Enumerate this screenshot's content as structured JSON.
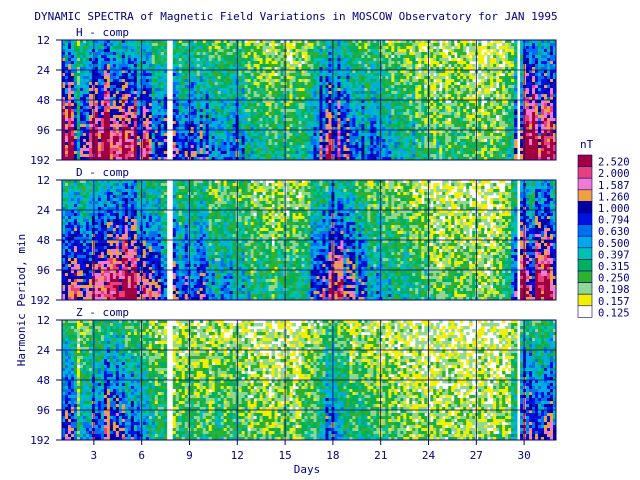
{
  "chart_data": {
    "type": "heatmap",
    "title": "DYNAMIC SPECTRA of Magnetic Field Variations in MOSCOW Observatory for JAN 1995",
    "xlabel": "Days",
    "ylabel": "Harmonic Period, min",
    "x_ticks": [
      "3",
      "6",
      "9",
      "12",
      "15",
      "18",
      "21",
      "24",
      "27",
      "30"
    ],
    "y_ticks": [
      "12",
      "24",
      "48",
      "96",
      "192"
    ],
    "y_scale": "log2",
    "x_range": [
      1,
      32
    ],
    "data_gaps_days": [
      [
        7.5,
        7.9
      ],
      [
        29.6,
        29.8
      ]
    ],
    "panels": [
      {
        "label": "H - comp",
        "activity": [
          {
            "day": 2,
            "level": 0.55
          },
          {
            "day": 3,
            "level": 1.0
          },
          {
            "day": 4,
            "level": 0.98
          },
          {
            "day": 5,
            "level": 0.9
          },
          {
            "day": 6,
            "level": 0.85
          },
          {
            "day": 7,
            "level": 0.55
          },
          {
            "day": 8,
            "level": 0.7
          },
          {
            "day": 9,
            "level": 0.6
          },
          {
            "day": 10,
            "level": 0.58
          },
          {
            "day": 11,
            "level": 0.6
          },
          {
            "day": 12,
            "level": 0.55
          },
          {
            "day": 13,
            "level": 0.4
          },
          {
            "day": 14,
            "level": 0.3
          },
          {
            "day": 15,
            "level": 0.32
          },
          {
            "day": 16,
            "level": 0.35
          },
          {
            "day": 17,
            "level": 0.6
          },
          {
            "day": 18,
            "level": 0.9
          },
          {
            "day": 19,
            "level": 0.75
          },
          {
            "day": 20,
            "level": 0.55
          },
          {
            "day": 21,
            "level": 0.5
          },
          {
            "day": 22,
            "level": 0.45
          },
          {
            "day": 23,
            "level": 0.35
          },
          {
            "day": 24,
            "level": 0.3
          },
          {
            "day": 25,
            "level": 0.25
          },
          {
            "day": 26,
            "level": 0.3
          },
          {
            "day": 27,
            "level": 0.25
          },
          {
            "day": 28,
            "level": 0.22
          },
          {
            "day": 29,
            "level": 0.3
          },
          {
            "day": 30,
            "level": 0.95
          },
          {
            "day": 31,
            "level": 0.92
          },
          {
            "day": 32,
            "level": 0.9
          }
        ]
      },
      {
        "label": "D - comp",
        "activity": [
          {
            "day": 2,
            "level": 0.6
          },
          {
            "day": 3,
            "level": 0.98
          },
          {
            "day": 4,
            "level": 1.0
          },
          {
            "day": 5,
            "level": 0.92
          },
          {
            "day": 6,
            "level": 0.85
          },
          {
            "day": 7,
            "level": 0.6
          },
          {
            "day": 8,
            "level": 0.65
          },
          {
            "day": 9,
            "level": 0.6
          },
          {
            "day": 10,
            "level": 0.55
          },
          {
            "day": 11,
            "level": 0.5
          },
          {
            "day": 12,
            "level": 0.45
          },
          {
            "day": 13,
            "level": 0.35
          },
          {
            "day": 14,
            "level": 0.28
          },
          {
            "day": 15,
            "level": 0.3
          },
          {
            "day": 16,
            "level": 0.35
          },
          {
            "day": 17,
            "level": 0.6
          },
          {
            "day": 18,
            "level": 0.9
          },
          {
            "day": 19,
            "level": 0.7
          },
          {
            "day": 20,
            "level": 0.5
          },
          {
            "day": 21,
            "level": 0.45
          },
          {
            "day": 22,
            "level": 0.4
          },
          {
            "day": 23,
            "level": 0.3
          },
          {
            "day": 24,
            "level": 0.28
          },
          {
            "day": 25,
            "level": 0.22
          },
          {
            "day": 26,
            "level": 0.25
          },
          {
            "day": 27,
            "level": 0.22
          },
          {
            "day": 28,
            "level": 0.2
          },
          {
            "day": 29,
            "level": 0.3
          },
          {
            "day": 30,
            "level": 0.9
          },
          {
            "day": 31,
            "level": 0.88
          },
          {
            "day": 32,
            "level": 0.85
          }
        ]
      },
      {
        "label": "Z - comp",
        "activity": [
          {
            "day": 2,
            "level": 0.35
          },
          {
            "day": 3,
            "level": 0.65
          },
          {
            "day": 4,
            "level": 0.7
          },
          {
            "day": 5,
            "level": 0.6
          },
          {
            "day": 6,
            "level": 0.5
          },
          {
            "day": 7,
            "level": 0.3
          },
          {
            "day": 8,
            "level": 0.25
          },
          {
            "day": 9,
            "level": 0.3
          },
          {
            "day": 10,
            "level": 0.28
          },
          {
            "day": 11,
            "level": 0.3
          },
          {
            "day": 12,
            "level": 0.28
          },
          {
            "day": 13,
            "level": 0.22
          },
          {
            "day": 14,
            "level": 0.2
          },
          {
            "day": 15,
            "level": 0.2
          },
          {
            "day": 16,
            "level": 0.22
          },
          {
            "day": 17,
            "level": 0.35
          },
          {
            "day": 18,
            "level": 0.65
          },
          {
            "day": 19,
            "level": 0.4
          },
          {
            "day": 20,
            "level": 0.28
          },
          {
            "day": 21,
            "level": 0.25
          },
          {
            "day": 22,
            "level": 0.22
          },
          {
            "day": 23,
            "level": 0.2
          },
          {
            "day": 24,
            "level": 0.2
          },
          {
            "day": 25,
            "level": 0.18
          },
          {
            "day": 26,
            "level": 0.18
          },
          {
            "day": 27,
            "level": 0.18
          },
          {
            "day": 28,
            "level": 0.17
          },
          {
            "day": 29,
            "level": 0.2
          },
          {
            "day": 30,
            "level": 0.7
          },
          {
            "day": 31,
            "level": 0.65
          },
          {
            "day": 32,
            "level": 0.6
          }
        ]
      }
    ],
    "colorbar": {
      "unit": "nT",
      "bins": [
        {
          "label": "2.520",
          "color": "#a00040"
        },
        {
          "label": "2.000",
          "color": "#e8407a"
        },
        {
          "label": "1.587",
          "color": "#f07ad0"
        },
        {
          "label": "1.260",
          "color": "#f0a040"
        },
        {
          "label": "1.000",
          "color": "#0000a0"
        },
        {
          "label": "0.794",
          "color": "#0010e0"
        },
        {
          "label": "0.630",
          "color": "#0070f0"
        },
        {
          "label": "0.500",
          "color": "#00a8e8"
        },
        {
          "label": "0.397",
          "color": "#00c0b0"
        },
        {
          "label": "0.315",
          "color": "#00b060"
        },
        {
          "label": "0.250",
          "color": "#30b030"
        },
        {
          "label": "0.198",
          "color": "#90d890"
        },
        {
          "label": "0.157",
          "color": "#f0f000"
        },
        {
          "label": "0.125",
          "color": "#ffffff"
        }
      ]
    }
  }
}
